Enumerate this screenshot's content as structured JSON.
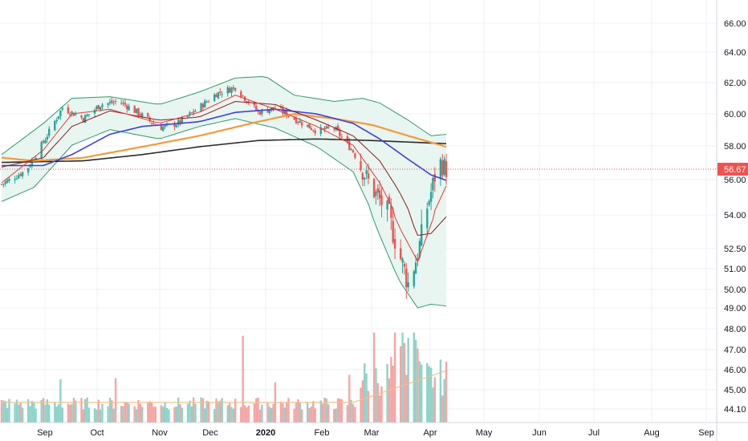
{
  "chart_data": {
    "type": "candlestick",
    "grid": true,
    "legend": "none",
    "colors": {
      "up": "#26a69a",
      "down": "#ef5350",
      "bollinger": "#2e9c68",
      "bollinger_fill": "#e8f5f1",
      "ma_fast": "#e53935",
      "ma_mid": "#8b1a1a",
      "ma_50": "#3f3fd6",
      "ma_100": "#f39a3a",
      "ma_200": "#2b2b2b",
      "volume_ma": "#f4c08a",
      "last_price": "#ef5350",
      "grid": "#eef0f3",
      "axis_border": "#d1d4dc"
    },
    "y_axis": {
      "ticks": [
        "66.00",
        "64.00",
        "62.00",
        "60.00",
        "58.00",
        "56.00",
        "54.00",
        "52.50",
        "51.00",
        "50.00",
        "49.00",
        "48.00",
        "47.00",
        "46.00",
        "45.00",
        "44.10"
      ],
      "last_price_label": "56.67"
    },
    "x_axis": {
      "ticks": [
        "Sep",
        "Oct",
        "Nov",
        "Dec",
        "2020",
        "Feb",
        "Mar",
        "Apr",
        "May",
        "Jun",
        "Jul",
        "Aug",
        "Sep"
      ]
    },
    "price_series": {
      "x_start": "2019-08-19",
      "x_end": "2020-04-09",
      "anchors": [
        [
          "2019-08-19",
          55.7
        ],
        [
          "2019-09-01",
          56.6
        ],
        [
          "2019-09-10",
          58.4
        ],
        [
          "2019-09-20",
          60.6
        ],
        [
          "2019-10-01",
          59.9
        ],
        [
          "2019-10-10",
          60.8
        ],
        [
          "2019-10-20",
          61.0
        ],
        [
          "2019-11-01",
          60.1
        ],
        [
          "2019-11-10",
          59.3
        ],
        [
          "2019-11-20",
          59.6
        ],
        [
          "2019-12-01",
          60.6
        ],
        [
          "2019-12-10",
          61.5
        ],
        [
          "2019-12-20",
          61.9
        ],
        [
          "2020-01-01",
          60.3
        ],
        [
          "2020-01-10",
          60.6
        ],
        [
          "2020-01-20",
          59.9
        ],
        [
          "2020-02-01",
          59.1
        ],
        [
          "2020-02-10",
          59.3
        ],
        [
          "2020-02-20",
          57.8
        ],
        [
          "2020-03-01",
          55.4
        ],
        [
          "2020-03-10",
          53.8
        ],
        [
          "2020-03-15",
          52.0
        ],
        [
          "2020-03-20",
          50.3
        ],
        [
          "2020-03-25",
          51.9
        ],
        [
          "2020-04-01",
          55.2
        ],
        [
          "2020-04-05",
          57.2
        ],
        [
          "2020-04-09",
          56.67
        ]
      ]
    },
    "bollinger": {
      "upper": [
        [
          "2019-08-19",
          57.6
        ],
        [
          "2019-09-10",
          59.6
        ],
        [
          "2019-09-25",
          61.2
        ],
        [
          "2019-10-15",
          61.3
        ],
        [
          "2019-11-10",
          60.8
        ],
        [
          "2019-12-01",
          61.6
        ],
        [
          "2019-12-20",
          62.5
        ],
        [
          "2020-01-05",
          62.6
        ],
        [
          "2020-01-20",
          61.4
        ],
        [
          "2020-02-10",
          61.0
        ],
        [
          "2020-02-25",
          61.2
        ],
        [
          "2020-03-05",
          60.9
        ],
        [
          "2020-03-20",
          59.8
        ],
        [
          "2020-04-01",
          58.8
        ],
        [
          "2020-04-09",
          58.9
        ]
      ],
      "lower": [
        [
          "2019-08-19",
          54.6
        ],
        [
          "2019-09-05",
          55.5
        ],
        [
          "2019-09-25",
          58.2
        ],
        [
          "2019-10-15",
          59.2
        ],
        [
          "2019-11-10",
          58.6
        ],
        [
          "2019-12-01",
          59.4
        ],
        [
          "2019-12-20",
          59.9
        ],
        [
          "2020-01-10",
          59.3
        ],
        [
          "2020-02-01",
          58.1
        ],
        [
          "2020-02-20",
          56.5
        ],
        [
          "2020-03-05",
          52.9
        ],
        [
          "2020-03-15",
          50.5
        ],
        [
          "2020-03-25",
          49.0
        ],
        [
          "2020-04-01",
          49.2
        ],
        [
          "2020-04-09",
          49.1
        ]
      ]
    },
    "moving_averages": {
      "ma_fast": [
        [
          "2019-08-19",
          55.8
        ],
        [
          "2019-09-10",
          57.9
        ],
        [
          "2019-09-25",
          60.2
        ],
        [
          "2019-10-15",
          60.5
        ],
        [
          "2019-11-10",
          59.6
        ],
        [
          "2019-12-01",
          60.3
        ],
        [
          "2019-12-20",
          61.4
        ],
        [
          "2020-01-10",
          60.5
        ],
        [
          "2020-02-01",
          59.4
        ],
        [
          "2020-02-20",
          58.2
        ],
        [
          "2020-03-05",
          55.8
        ],
        [
          "2020-03-15",
          53.4
        ],
        [
          "2020-03-25",
          51.5
        ],
        [
          "2020-04-01",
          53.5
        ],
        [
          "2020-04-09",
          55.6
        ]
      ],
      "ma_mid": [
        [
          "2019-08-19",
          56.8
        ],
        [
          "2019-09-10",
          57.4
        ],
        [
          "2019-09-25",
          59.4
        ],
        [
          "2019-10-15",
          60.4
        ],
        [
          "2019-11-10",
          59.8
        ],
        [
          "2019-12-01",
          60.0
        ],
        [
          "2019-12-20",
          61.0
        ],
        [
          "2020-01-10",
          60.8
        ],
        [
          "2020-02-01",
          59.8
        ],
        [
          "2020-02-20",
          58.8
        ],
        [
          "2020-03-05",
          57.2
        ],
        [
          "2020-03-15",
          55.3
        ],
        [
          "2020-03-25",
          52.9
        ],
        [
          "2020-04-01",
          53.0
        ],
        [
          "2020-04-09",
          53.9
        ]
      ],
      "ma_50": [
        [
          "2019-08-19",
          56.9
        ],
        [
          "2019-09-10",
          56.9
        ],
        [
          "2019-09-25",
          57.6
        ],
        [
          "2019-10-15",
          58.9
        ],
        [
          "2019-11-01",
          59.4
        ],
        [
          "2019-12-01",
          59.7
        ],
        [
          "2019-12-20",
          60.3
        ],
        [
          "2020-01-10",
          60.5
        ],
        [
          "2020-02-01",
          60.2
        ],
        [
          "2020-02-20",
          59.6
        ],
        [
          "2020-03-05",
          58.6
        ],
        [
          "2020-03-20",
          57.3
        ],
        [
          "2020-04-01",
          56.3
        ],
        [
          "2020-04-09",
          55.95
        ]
      ],
      "ma_100": [
        [
          "2019-08-19",
          57.4
        ],
        [
          "2019-09-05",
          57.2
        ],
        [
          "2019-10-01",
          57.4
        ],
        [
          "2019-11-01",
          58.1
        ],
        [
          "2019-12-01",
          58.8
        ],
        [
          "2020-01-01",
          59.7
        ],
        [
          "2020-01-20",
          60.2
        ],
        [
          "2020-02-10",
          59.9
        ],
        [
          "2020-03-01",
          59.5
        ],
        [
          "2020-03-20",
          58.8
        ],
        [
          "2020-04-09",
          58.1
        ]
      ],
      "ma_200": [
        [
          "2019-08-19",
          57.1
        ],
        [
          "2019-10-01",
          57.2
        ],
        [
          "2019-11-01",
          57.6
        ],
        [
          "2019-12-01",
          58.1
        ],
        [
          "2020-01-01",
          58.5
        ],
        [
          "2020-02-01",
          58.6
        ],
        [
          "2020-03-01",
          58.5
        ],
        [
          "2020-04-09",
          58.3
        ]
      ]
    },
    "volume": {
      "baseline_level": 45.0,
      "spikes": [
        [
          "2019-12-24",
          0.82
        ],
        [
          "2020-03-02",
          0.85
        ],
        [
          "2020-03-11",
          0.62
        ],
        [
          "2020-03-13",
          0.85
        ],
        [
          "2020-03-16",
          0.72
        ],
        [
          "2020-03-17",
          0.85
        ],
        [
          "2020-03-18",
          0.75
        ],
        [
          "2020-03-20",
          0.8
        ],
        [
          "2020-03-23",
          0.85
        ],
        [
          "2020-03-24",
          0.78
        ],
        [
          "2020-03-25",
          0.7
        ],
        [
          "2020-02-18",
          0.45
        ],
        [
          "2019-09-19",
          0.41
        ],
        [
          "2019-10-18",
          0.42
        ],
        [
          "2020-01-10",
          0.38
        ]
      ]
    }
  }
}
